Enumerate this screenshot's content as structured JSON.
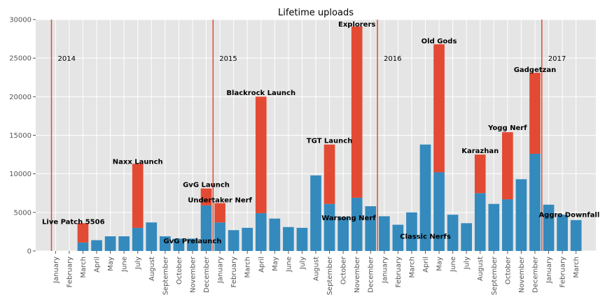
{
  "chart_data": {
    "type": "bar",
    "stacked": true,
    "title": "Lifetime uploads",
    "xlabel": "",
    "ylabel": "",
    "ylim": [
      0,
      30000
    ],
    "yticks": [
      0,
      5000,
      10000,
      15000,
      20000,
      25000,
      30000
    ],
    "grid": true,
    "categories": [
      "January",
      "February",
      "March",
      "April",
      "May",
      "June",
      "July",
      "August",
      "September",
      "October",
      "November",
      "December",
      "January",
      "February",
      "March",
      "April",
      "May",
      "June",
      "July",
      "August",
      "September",
      "October",
      "November",
      "December",
      "January",
      "February",
      "March",
      "April",
      "May",
      "June",
      "July",
      "August",
      "September",
      "October",
      "November",
      "December",
      "January",
      "February",
      "March"
    ],
    "series": [
      {
        "color": "#348abd",
        "values": [
          0,
          0,
          1100,
          1400,
          1900,
          1900,
          3000,
          3700,
          1900,
          1600,
          1600,
          5900,
          3700,
          2700,
          3000,
          4900,
          4200,
          3100,
          3000,
          9800,
          6100,
          4400,
          6900,
          5800,
          4500,
          3400,
          5000,
          13800,
          10200,
          4700,
          3600,
          7500,
          6100,
          6700,
          9300,
          12600,
          6000,
          4700,
          4000
        ]
      },
      {
        "color": "#e24a33",
        "values": [
          0,
          0,
          2500,
          0,
          0,
          0,
          8300,
          0,
          0,
          0,
          0,
          2200,
          2500,
          0,
          0,
          15100,
          0,
          0,
          0,
          0,
          7700,
          0,
          22200,
          0,
          0,
          0,
          0,
          0,
          16600,
          0,
          0,
          5000,
          0,
          8700,
          0,
          10500,
          0,
          0,
          0
        ]
      }
    ],
    "year_markers": [
      {
        "index": -0.3,
        "label": "2014"
      },
      {
        "index": 11.5,
        "label": "2015"
      },
      {
        "index": 23.5,
        "label": "2016"
      },
      {
        "index": 35.5,
        "label": "2017"
      }
    ],
    "annotations": [
      {
        "text": "Live Patch 5506",
        "index": 1.3,
        "y": 3500
      },
      {
        "text": "Naxx Launch",
        "index": 6,
        "y": 11300
      },
      {
        "text": "GvG Prelaunch",
        "index": 10,
        "y": 1000
      },
      {
        "text": "GvG Launch",
        "index": 11,
        "y": 8300
      },
      {
        "text": "Undertaker Nerf",
        "index": 12,
        "y": 6300
      },
      {
        "text": "Blackrock Launch",
        "index": 15,
        "y": 20200
      },
      {
        "text": "TGT Launch",
        "index": 20,
        "y": 14000
      },
      {
        "text": "Warsong Nerf",
        "index": 21.4,
        "y": 4000
      },
      {
        "text": "Explorers",
        "index": 22,
        "y": 29100
      },
      {
        "text": "Classic Nerfs",
        "index": 27,
        "y": 1600
      },
      {
        "text": "Old Gods",
        "index": 28,
        "y": 26900
      },
      {
        "text": "Karazhan",
        "index": 31,
        "y": 12700
      },
      {
        "text": "Yogg Nerf",
        "index": 33,
        "y": 15700
      },
      {
        "text": "Gadgetzan",
        "index": 35,
        "y": 23200
      },
      {
        "text": "Aggro Downfall",
        "index": 37.5,
        "y": 4400
      }
    ]
  }
}
